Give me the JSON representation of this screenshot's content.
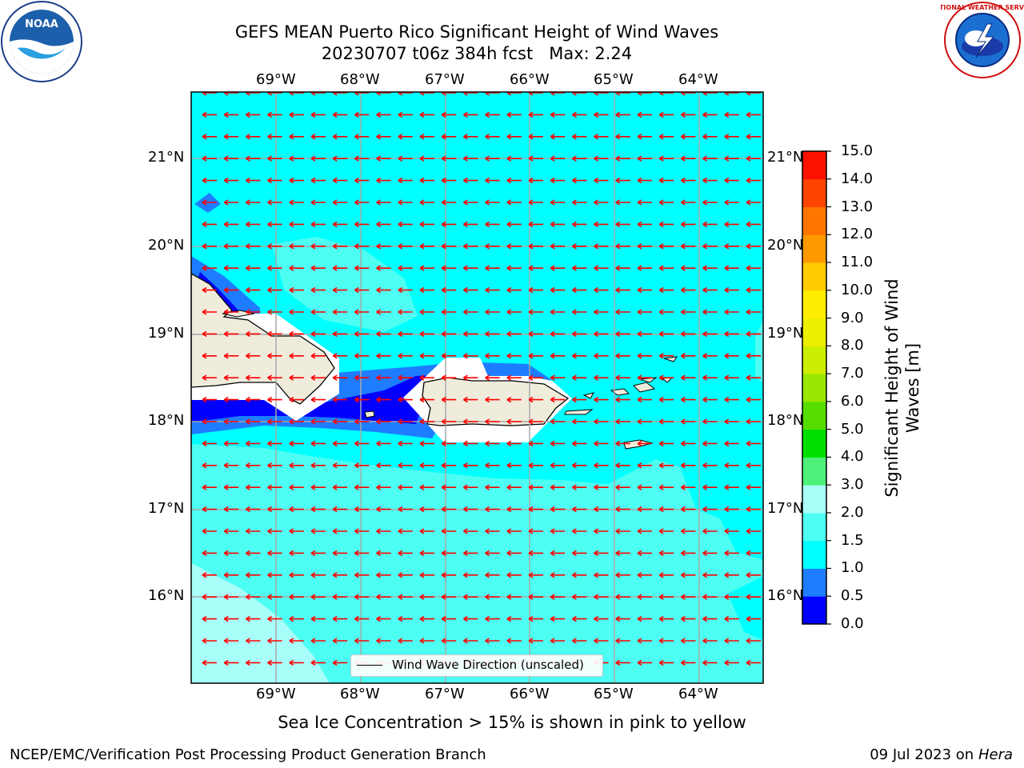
{
  "title": {
    "line1": "GEFS MEAN Puerto Rico Significant Height of Wind Waves",
    "line2": "20230707 t06z 384h fcst   Max: 2.24"
  },
  "map": {
    "lon_ticks": [
      "69°W",
      "68°W",
      "67°W",
      "66°W",
      "65°W",
      "64°W"
    ],
    "lat_ticks": [
      "21°N",
      "20°N",
      "19°N",
      "18°N",
      "17°N",
      "16°N"
    ],
    "extent": {
      "lon": [
        -70,
        -63.25
      ],
      "lat": [
        15.25,
        21.75
      ]
    },
    "grid": true,
    "wind_direction": "westward",
    "legend": "Wind Wave Direction (unscaled)"
  },
  "colorbar": {
    "label": "Significant Height of Wind Waves [m]",
    "ticks": [
      "0.0",
      "0.5",
      "1.0",
      "1.5",
      "2.0",
      "3.0",
      "4.0",
      "5.0",
      "6.0",
      "7.0",
      "8.0",
      "9.0",
      "10.0",
      "11.0",
      "12.0",
      "13.0",
      "14.0",
      "15.0"
    ],
    "colors": [
      "#0000ff",
      "#1e7dff",
      "#00ffff",
      "#4dfff2",
      "#a8fffa",
      "#4ef07a",
      "#00e000",
      "#55dd00",
      "#99e600",
      "#ccee00",
      "#eeee00",
      "#ffee00",
      "#ffcc00",
      "#ff9900",
      "#ff7700",
      "#ff4400",
      "#ff1100"
    ]
  },
  "note": "Sea Ice Concentration > 15% is shown in pink to yellow",
  "footer": {
    "left": "NCEP/EMC/Verification Post Processing Product Generation Branch",
    "date": "09 Jul 2023 on ",
    "machine": "Hera"
  },
  "logos": {
    "noaa": "NOAA",
    "nws_ring": "NATIONAL WEATHER SERVICE"
  }
}
